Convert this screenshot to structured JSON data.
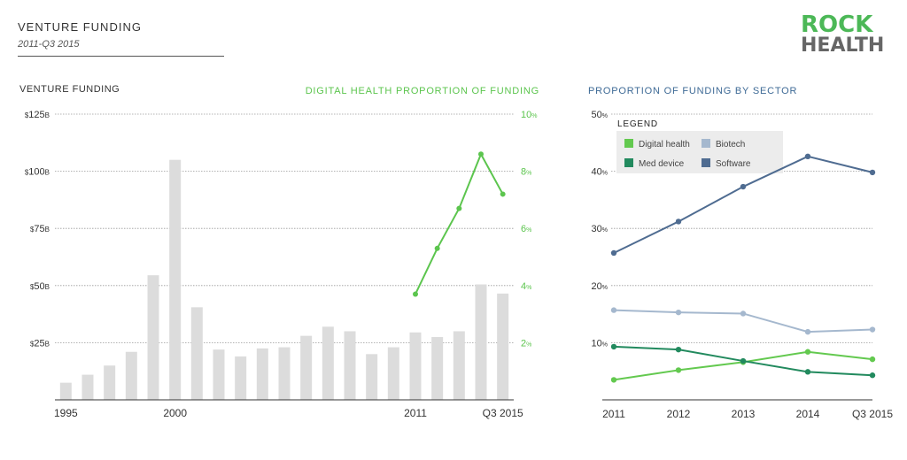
{
  "header": {
    "title": "VENTURE FUNDING",
    "subtitle": "2011-Q3 2015"
  },
  "logo": {
    "line1": "ROCK",
    "line2": "HEALTH",
    "colors": {
      "line1": "#4cb857",
      "line2": "#666666",
      "cross": "#4cb857"
    }
  },
  "colors": {
    "bar": "#dcdcdc",
    "green": "#5cc54e",
    "dark_text": "#333333",
    "sector_title": "#3e6a96",
    "digital_health": "#63c94f",
    "med_device": "#228a5e",
    "biotech": "#a5b8ce",
    "software": "#4f6c91"
  },
  "chart_data": [
    {
      "type": "bar",
      "title": "VENTURE FUNDING",
      "secondary_title": "DIGITAL HEALTH PROPORTION OF FUNDING",
      "x": [
        1995,
        1996,
        1997,
        1998,
        1999,
        2000,
        2001,
        2002,
        2003,
        2004,
        2005,
        2006,
        2007,
        2008,
        2009,
        2010,
        2011,
        2012,
        2013,
        2014,
        "Q3 2015"
      ],
      "values": [
        7.5,
        11,
        15,
        21,
        54.5,
        105,
        40.5,
        22,
        19,
        22.5,
        23,
        28,
        32,
        30,
        20,
        23,
        29.5,
        27.5,
        30,
        50.5,
        46.5
      ],
      "ylim": [
        0,
        125
      ],
      "y_ticks": [
        {
          "value": 25,
          "prefix": "$",
          "num": "25",
          "suffix": "B"
        },
        {
          "value": 50,
          "prefix": "$",
          "num": "50",
          "suffix": "B"
        },
        {
          "value": 75,
          "prefix": "$",
          "num": "75",
          "suffix": "B"
        },
        {
          "value": 100,
          "prefix": "$",
          "num": "100",
          "suffix": "B"
        },
        {
          "value": 125,
          "prefix": "$",
          "num": "125",
          "suffix": "B"
        }
      ],
      "x_tick_labels": [
        {
          "index": 0,
          "label": "1995"
        },
        {
          "index": 5,
          "label": "2000"
        },
        {
          "index": 16,
          "label": "2011"
        },
        {
          "index": 20,
          "label": "Q3 2015"
        }
      ],
      "secondary_series": {
        "name": "Digital health proportion of funding",
        "start_index": 16,
        "values": [
          3.7,
          5.3,
          6.7,
          8.6,
          7.2
        ],
        "ylim": [
          0,
          10
        ],
        "y_ticks": [
          {
            "value": 2,
            "num": "2",
            "suffix": "%"
          },
          {
            "value": 4,
            "num": "4",
            "suffix": "%"
          },
          {
            "value": 6,
            "num": "6",
            "suffix": "%"
          },
          {
            "value": 8,
            "num": "8",
            "suffix": "%"
          },
          {
            "value": 10,
            "num": "10",
            "suffix": "%"
          }
        ]
      },
      "grid": true
    },
    {
      "type": "line",
      "title": "PROPORTION OF FUNDING BY SECTOR",
      "categories": [
        "2011",
        "2012",
        "2013",
        "2014",
        "Q3 2015"
      ],
      "ylim": [
        0,
        50
      ],
      "y_ticks": [
        {
          "value": 10,
          "num": "10",
          "suffix": "%"
        },
        {
          "value": 20,
          "num": "20",
          "suffix": "%"
        },
        {
          "value": 30,
          "num": "30",
          "suffix": "%"
        },
        {
          "value": 40,
          "num": "40",
          "suffix": "%"
        },
        {
          "value": 50,
          "num": "50",
          "suffix": "%"
        }
      ],
      "legend_title": "LEGEND",
      "legend_position": "top-left",
      "series": [
        {
          "name": "Digital health",
          "color_key": "digital_health",
          "values": [
            3.5,
            5.2,
            6.6,
            8.4,
            7.1
          ]
        },
        {
          "name": "Biotech",
          "color_key": "biotech",
          "values": [
            15.7,
            15.3,
            15.1,
            11.9,
            12.3
          ]
        },
        {
          "name": "Med device",
          "color_key": "med_device",
          "values": [
            9.3,
            8.8,
            6.8,
            4.9,
            4.3
          ]
        },
        {
          "name": "Software",
          "color_key": "software",
          "values": [
            25.7,
            31.2,
            37.3,
            42.6,
            39.8
          ]
        }
      ],
      "grid": true
    }
  ]
}
